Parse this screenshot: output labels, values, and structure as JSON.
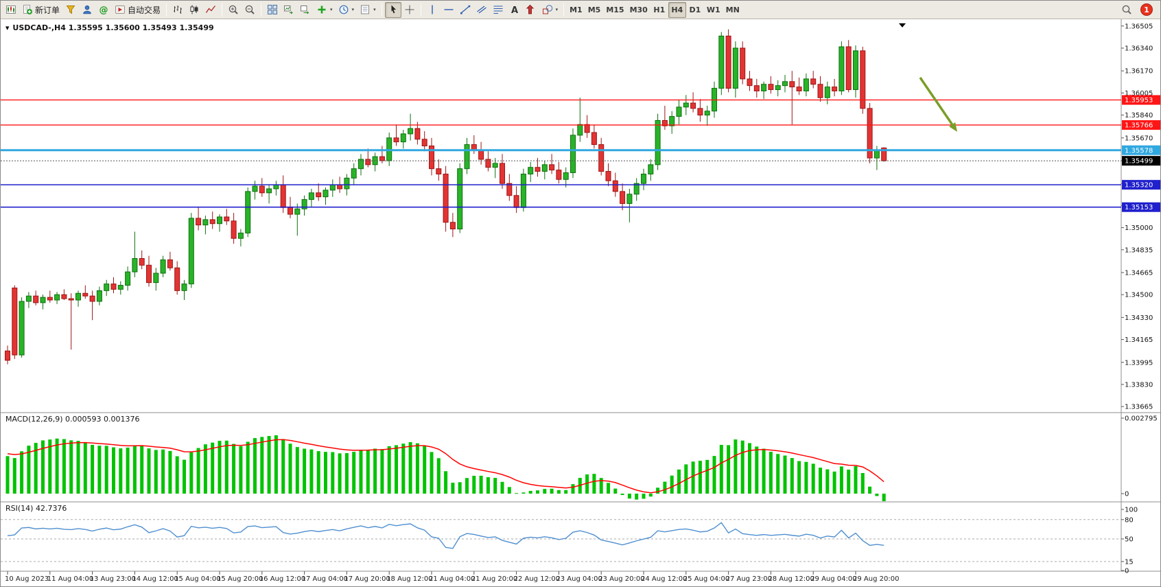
{
  "toolbar": {
    "new_order_label": "新订单",
    "auto_trading_label": "自动交易",
    "timeframes": [
      "M1",
      "M5",
      "M15",
      "M30",
      "H1",
      "H4",
      "D1",
      "W1",
      "MN"
    ],
    "active_timeframe": "H4",
    "notification_count": "1",
    "items": [
      {
        "name": "chart-window-button",
        "icon": "winchart"
      },
      {
        "name": "new-order-button",
        "icon": "neworder",
        "label": "新订单"
      },
      {
        "name": "profiles-button",
        "icon": "funnel"
      },
      {
        "name": "market-watch-button",
        "icon": "person"
      },
      {
        "name": "community-button",
        "icon": "at"
      },
      {
        "name": "auto-trading-button",
        "icon": "autotrade",
        "label": "自动交易"
      },
      {
        "type": "sep"
      },
      {
        "name": "bar-chart-button",
        "icon": "barchart"
      },
      {
        "name": "candle-chart-button",
        "icon": "candlechart"
      },
      {
        "name": "line-chart-button",
        "icon": "linechart"
      },
      {
        "type": "sep"
      },
      {
        "name": "zoom-in-button",
        "icon": "zoomin"
      },
      {
        "name": "zoom-out-button",
        "icon": "zoomout"
      },
      {
        "type": "sep"
      },
      {
        "name": "tile-windows-button",
        "icon": "tile"
      },
      {
        "name": "auto-scroll-button",
        "icon": "arrange"
      },
      {
        "name": "chart-shift-button",
        "icon": "shift"
      },
      {
        "name": "indicators-button",
        "icon": "addind",
        "caret": true
      },
      {
        "name": "periods-button",
        "icon": "clock",
        "caret": true
      },
      {
        "name": "templates-button",
        "icon": "template",
        "caret": true
      },
      {
        "type": "sep"
      },
      {
        "name": "cursor-button",
        "icon": "cursor",
        "pressed": true
      },
      {
        "name": "crosshair-button",
        "icon": "crosshair"
      },
      {
        "type": "sep"
      },
      {
        "name": "vertical-line-button",
        "icon": "vline"
      },
      {
        "name": "horizontal-line-button",
        "icon": "hline"
      },
      {
        "name": "trendline-button",
        "icon": "tline"
      },
      {
        "name": "channel-button",
        "icon": "channel"
      },
      {
        "name": "fibonacci-button",
        "icon": "fibo"
      },
      {
        "name": "text-button",
        "icon": "textA"
      },
      {
        "name": "arrow-tools-button",
        "icon": "arrows"
      },
      {
        "name": "shapes-button",
        "icon": "shapes",
        "caret": true
      },
      {
        "type": "sep"
      },
      {
        "type": "timeframes"
      },
      {
        "type": "right"
      }
    ]
  },
  "chart": {
    "symbol_title": "USDCAD-,H4 1.35595 1.35600 1.35493 1.35499"
  },
  "indicators": {
    "macd_label": "MACD(12,26,9) 0.000593 0.001376",
    "rsi_label": "RSI(14) 42.7376"
  },
  "chart_data": {
    "type": "candlestick",
    "symbol": "USDCAD",
    "timeframe": "H4",
    "ohlc_current": {
      "open": 1.35595,
      "high": 1.356,
      "low": 1.35493,
      "close": 1.35499
    },
    "price_axis_range": {
      "top": 1.3654,
      "bottom": 1.3363
    },
    "price_axis_labels": [
      "1.36505",
      "1.36340",
      "1.36170",
      "1.36005",
      "1.35840",
      "1.35670",
      "1.35500",
      "1.35330",
      "1.35165",
      "1.35000",
      "1.34835",
      "1.34665",
      "1.34500",
      "1.34330",
      "1.34165",
      "1.33995",
      "1.33830",
      "1.33665"
    ],
    "time_labels": [
      "10 Aug 2023",
      "11 Aug 04:00",
      "13 Aug 23:00",
      "14 Aug 12:00",
      "15 Aug 04:00",
      "15 Aug 20:00",
      "16 Aug 12:00",
      "17 Aug 04:00",
      "17 Aug 20:00",
      "18 Aug 12:00",
      "21 Aug 04:00",
      "21 Aug 20:00",
      "22 Aug 12:00",
      "23 Aug 04:00",
      "23 Aug 20:00",
      "24 Aug 12:00",
      "25 Aug 04:00",
      "27 Aug 23:00",
      "28 Aug 12:00",
      "29 Aug 04:00",
      "29 Aug 20:00"
    ],
    "levels": [
      {
        "value": 1.35953,
        "label": "1.35953",
        "color": "#ff1515",
        "width": 1.4
      },
      {
        "value": 1.35766,
        "label": "1.35766",
        "color": "#ff1515",
        "width": 1.4
      },
      {
        "value": 1.35578,
        "label": "1.35578",
        "color": "#30a8e0",
        "width": 3,
        "selected": true
      },
      {
        "value": 1.3532,
        "label": "1.35320",
        "color": "#2020cc",
        "width": 1.6
      },
      {
        "value": 1.35153,
        "label": "1.35153",
        "color": "#2020cc",
        "width": 1.6
      }
    ],
    "bid": {
      "value": 1.35499,
      "label": "1.35499",
      "badge_color": "#000000"
    },
    "macd": {
      "params": "12,26,9",
      "value": "0.000593",
      "signal": "0.001376",
      "axis_labels": [
        "0.002795",
        "0"
      ],
      "max": 0.002795
    },
    "rsi": {
      "period": 14,
      "value": "42.7376",
      "axis_labels": [
        "100",
        "80",
        "50",
        "15",
        "0"
      ],
      "levels": [
        80,
        50,
        15
      ]
    },
    "annotation_arrow": {
      "from": [
        1340,
        112
      ],
      "to": [
        1394,
        191
      ],
      "color": "#7a9e28"
    },
    "colors": {
      "bull": "#29b329",
      "bull_border": "#0e6f0e",
      "bear": "#e33434",
      "bear_border": "#9c1414",
      "macd": "#00c300",
      "signal": "#ff0000",
      "rsi": "#4f8fd0"
    },
    "candles": [
      [
        1.3408,
        1.3412,
        1.3398,
        1.3401
      ],
      [
        1.3455,
        1.3457,
        1.3402,
        1.3405
      ],
      [
        1.3405,
        1.3448,
        1.3403,
        1.3445
      ],
      [
        1.3445,
        1.3452,
        1.344,
        1.3449
      ],
      [
        1.3449,
        1.3453,
        1.3442,
        1.3444
      ],
      [
        1.3444,
        1.345,
        1.3439,
        1.3448
      ],
      [
        1.3448,
        1.3453,
        1.3444,
        1.3446
      ],
      [
        1.3446,
        1.3452,
        1.3443,
        1.345
      ],
      [
        1.345,
        1.3454,
        1.3446,
        1.3447
      ],
      [
        1.3447,
        1.3451,
        1.3409,
        1.3446
      ],
      [
        1.3446,
        1.3453,
        1.3441,
        1.3451
      ],
      [
        1.3451,
        1.3457,
        1.3447,
        1.3449
      ],
      [
        1.3449,
        1.3453,
        1.3431,
        1.3445
      ],
      [
        1.3445,
        1.3456,
        1.3442,
        1.3453
      ],
      [
        1.3453,
        1.3461,
        1.3449,
        1.3458
      ],
      [
        1.3458,
        1.3463,
        1.3451,
        1.3454
      ],
      [
        1.3454,
        1.346,
        1.345,
        1.3457
      ],
      [
        1.3457,
        1.3471,
        1.3453,
        1.3467
      ],
      [
        1.3467,
        1.3497,
        1.3463,
        1.3477
      ],
      [
        1.3477,
        1.3483,
        1.3469,
        1.3472
      ],
      [
        1.3472,
        1.3479,
        1.3456,
        1.3459
      ],
      [
        1.3459,
        1.347,
        1.3453,
        1.3466
      ],
      [
        1.3466,
        1.3479,
        1.3463,
        1.3476
      ],
      [
        1.3476,
        1.3482,
        1.3468,
        1.347
      ],
      [
        1.347,
        1.3475,
        1.345,
        1.3453
      ],
      [
        1.3453,
        1.3461,
        1.3446,
        1.3458
      ],
      [
        1.3458,
        1.3511,
        1.3455,
        1.3507
      ],
      [
        1.3507,
        1.3515,
        1.3498,
        1.3502
      ],
      [
        1.3502,
        1.3509,
        1.3495,
        1.3506
      ],
      [
        1.3506,
        1.3512,
        1.3499,
        1.3503
      ],
      [
        1.3503,
        1.351,
        1.3497,
        1.3508
      ],
      [
        1.3508,
        1.3514,
        1.3502,
        1.3505
      ],
      [
        1.3505,
        1.3511,
        1.3488,
        1.3492
      ],
      [
        1.3492,
        1.3499,
        1.3486,
        1.3496
      ],
      [
        1.3496,
        1.353,
        1.3493,
        1.3527
      ],
      [
        1.3527,
        1.3535,
        1.3521,
        1.3531
      ],
      [
        1.3531,
        1.3537,
        1.3523,
        1.3526
      ],
      [
        1.3526,
        1.3532,
        1.3518,
        1.3529
      ],
      [
        1.3529,
        1.3535,
        1.3524,
        1.3532
      ],
      [
        1.3532,
        1.3539,
        1.3511,
        1.3515
      ],
      [
        1.3515,
        1.3523,
        1.3507,
        1.351
      ],
      [
        1.351,
        1.3518,
        1.3494,
        1.3514
      ],
      [
        1.3514,
        1.3524,
        1.3509,
        1.3521
      ],
      [
        1.3521,
        1.3529,
        1.3515,
        1.3526
      ],
      [
        1.3526,
        1.3533,
        1.352,
        1.3523
      ],
      [
        1.3523,
        1.353,
        1.3517,
        1.3528
      ],
      [
        1.3528,
        1.3536,
        1.3523,
        1.3532
      ],
      [
        1.3532,
        1.3538,
        1.3526,
        1.3529
      ],
      [
        1.3529,
        1.354,
        1.3524,
        1.3537
      ],
      [
        1.3537,
        1.3548,
        1.3532,
        1.3544
      ],
      [
        1.3544,
        1.3555,
        1.3539,
        1.3551
      ],
      [
        1.3551,
        1.3559,
        1.3545,
        1.3547
      ],
      [
        1.3547,
        1.3556,
        1.3542,
        1.3553
      ],
      [
        1.3553,
        1.3561,
        1.3548,
        1.355
      ],
      [
        1.355,
        1.3571,
        1.3546,
        1.3567
      ],
      [
        1.3567,
        1.3577,
        1.3561,
        1.3564
      ],
      [
        1.3564,
        1.3573,
        1.3559,
        1.357
      ],
      [
        1.357,
        1.3585,
        1.3565,
        1.3574
      ],
      [
        1.3574,
        1.3579,
        1.3562,
        1.3566
      ],
      [
        1.3566,
        1.3572,
        1.3557,
        1.3561
      ],
      [
        1.3561,
        1.3567,
        1.3539,
        1.3544
      ],
      [
        1.3544,
        1.3551,
        1.3535,
        1.354
      ],
      [
        1.354,
        1.3546,
        1.3497,
        1.3504
      ],
      [
        1.3504,
        1.3511,
        1.3493,
        1.3499
      ],
      [
        1.3499,
        1.3548,
        1.3496,
        1.3544
      ],
      [
        1.3544,
        1.3567,
        1.354,
        1.3562
      ],
      [
        1.3562,
        1.3569,
        1.3555,
        1.3558
      ],
      [
        1.3558,
        1.3564,
        1.3547,
        1.3551
      ],
      [
        1.3551,
        1.3557,
        1.3542,
        1.3545
      ],
      [
        1.3545,
        1.3552,
        1.3537,
        1.3548
      ],
      [
        1.3548,
        1.3555,
        1.3529,
        1.3533
      ],
      [
        1.3533,
        1.354,
        1.352,
        1.3524
      ],
      [
        1.3524,
        1.3531,
        1.3511,
        1.3515
      ],
      [
        1.3515,
        1.3544,
        1.3512,
        1.354
      ],
      [
        1.354,
        1.3549,
        1.3534,
        1.3545
      ],
      [
        1.3545,
        1.3552,
        1.3538,
        1.3542
      ],
      [
        1.3542,
        1.355,
        1.3536,
        1.3547
      ],
      [
        1.3547,
        1.3555,
        1.354,
        1.3543
      ],
      [
        1.3543,
        1.3549,
        1.3533,
        1.3536
      ],
      [
        1.3536,
        1.3545,
        1.353,
        1.3541
      ],
      [
        1.3541,
        1.3574,
        1.3537,
        1.3569
      ],
      [
        1.3569,
        1.3597,
        1.3564,
        1.3577
      ],
      [
        1.3577,
        1.3584,
        1.3567,
        1.3571
      ],
      [
        1.3571,
        1.3577,
        1.3559,
        1.3562
      ],
      [
        1.3562,
        1.3567,
        1.3539,
        1.3542
      ],
      [
        1.3542,
        1.3548,
        1.3531,
        1.3535
      ],
      [
        1.3535,
        1.3541,
        1.3523,
        1.3527
      ],
      [
        1.3527,
        1.3533,
        1.3513,
        1.3518
      ],
      [
        1.3518,
        1.3529,
        1.3504,
        1.3525
      ],
      [
        1.3525,
        1.3537,
        1.352,
        1.3533
      ],
      [
        1.3533,
        1.3544,
        1.3528,
        1.354
      ],
      [
        1.354,
        1.3551,
        1.3535,
        1.3547
      ],
      [
        1.3547,
        1.3585,
        1.3543,
        1.358
      ],
      [
        1.358,
        1.3591,
        1.3573,
        1.3576
      ],
      [
        1.3576,
        1.3587,
        1.357,
        1.3583
      ],
      [
        1.3583,
        1.3595,
        1.3577,
        1.359
      ],
      [
        1.359,
        1.3599,
        1.3584,
        1.3593
      ],
      [
        1.3593,
        1.3601,
        1.3586,
        1.3589
      ],
      [
        1.3589,
        1.3596,
        1.3579,
        1.3584
      ],
      [
        1.3584,
        1.3591,
        1.3576,
        1.3587
      ],
      [
        1.3587,
        1.3609,
        1.3582,
        1.3604
      ],
      [
        1.3604,
        1.3646,
        1.3599,
        1.3643
      ],
      [
        1.3643,
        1.3648,
        1.3601,
        1.3604
      ],
      [
        1.3604,
        1.3639,
        1.3597,
        1.3634
      ],
      [
        1.3634,
        1.3639,
        1.3607,
        1.3611
      ],
      [
        1.3611,
        1.3617,
        1.3602,
        1.3606
      ],
      [
        1.3606,
        1.3611,
        1.3597,
        1.3602
      ],
      [
        1.3602,
        1.3609,
        1.3596,
        1.3607
      ],
      [
        1.3607,
        1.3613,
        1.36,
        1.3603
      ],
      [
        1.3603,
        1.361,
        1.3598,
        1.3606
      ],
      [
        1.3606,
        1.3614,
        1.3601,
        1.3609
      ],
      [
        1.3609,
        1.3617,
        1.3577,
        1.3605
      ],
      [
        1.3605,
        1.3612,
        1.3599,
        1.3602
      ],
      [
        1.3602,
        1.3615,
        1.3598,
        1.3611
      ],
      [
        1.3611,
        1.3617,
        1.3604,
        1.3607
      ],
      [
        1.3607,
        1.3613,
        1.3594,
        1.3597
      ],
      [
        1.3597,
        1.3609,
        1.3592,
        1.3605
      ],
      [
        1.3605,
        1.3611,
        1.3598,
        1.3602
      ],
      [
        1.3602,
        1.3639,
        1.3599,
        1.3635
      ],
      [
        1.3635,
        1.364,
        1.3601,
        1.3603
      ],
      [
        1.3603,
        1.3636,
        1.3597,
        1.3632
      ],
      [
        1.3632,
        1.3635,
        1.3585,
        1.3589
      ],
      [
        1.3589,
        1.3593,
        1.3548,
        1.3552
      ],
      [
        1.3552,
        1.3561,
        1.3543,
        1.3558
      ],
      [
        1.35595,
        1.356,
        1.35493,
        1.35499
      ]
    ]
  }
}
